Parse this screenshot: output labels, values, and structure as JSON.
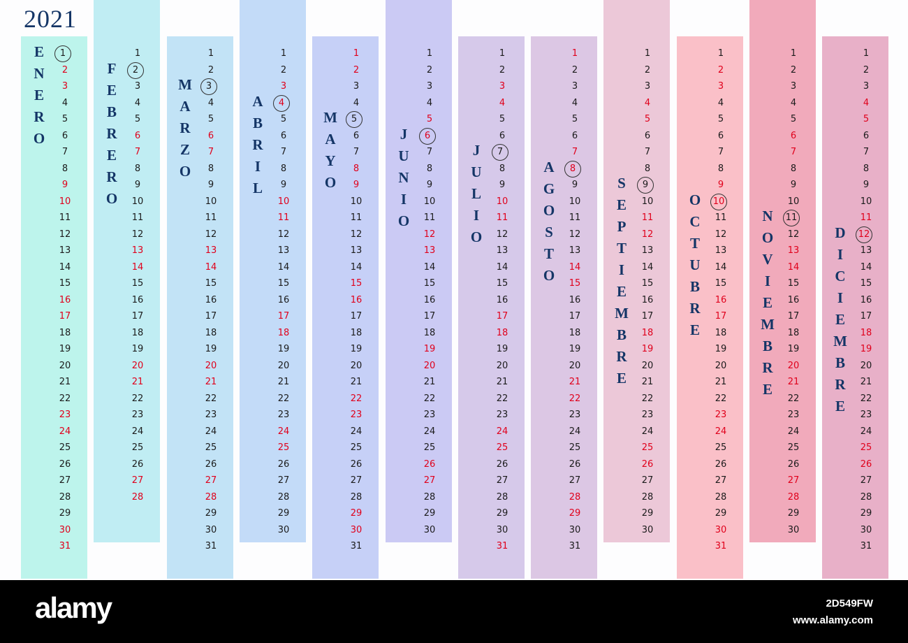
{
  "year": "2021",
  "colors": {
    "month_name": "#143566",
    "weekend": "#e0001b",
    "day": "#1b1b1b"
  },
  "months": [
    {
      "name": "ENERO",
      "days": 31,
      "color": "#bdf4ec",
      "highlight": 1,
      "weekend": [
        2,
        3,
        9,
        10,
        16,
        17,
        23,
        24,
        30,
        31
      ]
    },
    {
      "name": "FEBRERO",
      "days": 28,
      "color": "#c0edf3",
      "highlight": 2,
      "weekend": [
        6,
        7,
        13,
        14,
        20,
        21,
        27,
        28
      ]
    },
    {
      "name": "MARZO",
      "days": 31,
      "color": "#c2e3f6",
      "highlight": 3,
      "weekend": [
        6,
        7,
        13,
        14,
        20,
        21,
        27,
        28
      ]
    },
    {
      "name": "ABRIL",
      "days": 30,
      "color": "#c3dbf8",
      "highlight": 4,
      "weekend": [
        3,
        4,
        10,
        11,
        17,
        18,
        24,
        25
      ]
    },
    {
      "name": "MAYO",
      "days": 31,
      "color": "#c6d0f7",
      "highlight": 5,
      "weekend": [
        1,
        2,
        8,
        9,
        15,
        16,
        22,
        23,
        29,
        30
      ]
    },
    {
      "name": "JUNIO",
      "days": 30,
      "color": "#cbcaf4",
      "highlight": 6,
      "weekend": [
        5,
        6,
        12,
        13,
        19,
        20,
        26,
        27
      ]
    },
    {
      "name": "JULIO",
      "days": 31,
      "color": "#d6c9ea",
      "highlight": 7,
      "weekend": [
        3,
        4,
        10,
        11,
        17,
        18,
        24,
        25,
        31
      ]
    },
    {
      "name": "AGOSTO",
      "days": 31,
      "color": "#dcc7e4",
      "highlight": 8,
      "weekend": [
        1,
        7,
        8,
        14,
        15,
        21,
        22,
        28,
        29
      ]
    },
    {
      "name": "SEPTIEMBRE",
      "days": 30,
      "color": "#ecc8d8",
      "highlight": 9,
      "weekend": [
        4,
        5,
        11,
        12,
        18,
        19,
        25,
        26
      ]
    },
    {
      "name": "OCTUBRE",
      "days": 31,
      "color": "#fac0c8",
      "highlight": 10,
      "weekend": [
        2,
        3,
        9,
        10,
        16,
        17,
        23,
        24,
        30,
        31
      ]
    },
    {
      "name": "NOVIEMBRE",
      "days": 30,
      "color": "#f1aabb",
      "highlight": 11,
      "weekend": [
        6,
        7,
        13,
        14,
        20,
        21,
        27,
        28
      ]
    },
    {
      "name": "DICIEMBRE",
      "days": 31,
      "color": "#e8b0c8",
      "highlight": 12,
      "weekend": [
        4,
        5,
        11,
        12,
        18,
        19,
        25,
        26
      ]
    }
  ],
  "footer": {
    "logo": "alamy",
    "image_id": "2D549FW",
    "site": "www.alamy.com"
  }
}
